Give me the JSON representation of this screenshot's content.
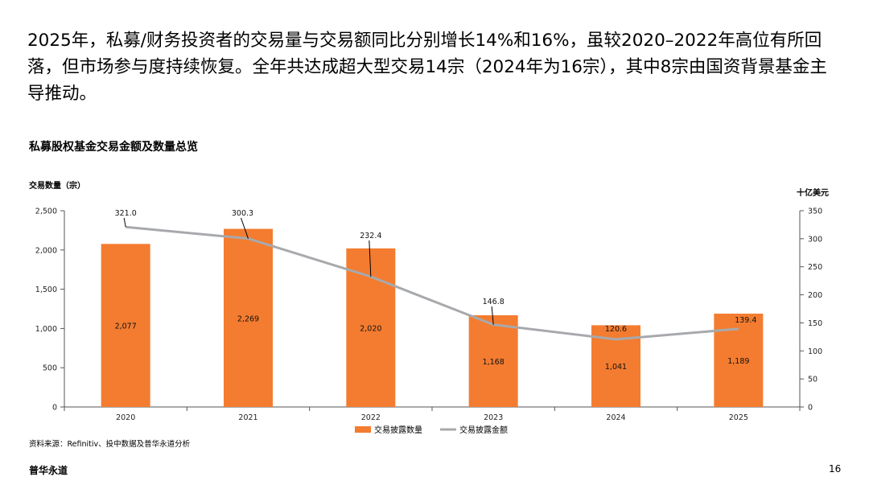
{
  "headline": "2025年，私募/财务投资者的交易量与交易额同比分别增长14%和16%，虽较2020–2022年高位有所回落，但市场参与度持续恢复。全年共达成超大型交易14宗（2024年为16宗），其中8宗由国资背景基金主导推动。",
  "colors": {
    "bar": "#F47C30",
    "line": "#A7A9AC",
    "axis": "#555555",
    "text": "#000000"
  },
  "chart_data": {
    "type": "bar",
    "title": "私募股权基金交易金额及数量总览",
    "left_axis_title": "交易数量（宗）",
    "right_axis_title": "十亿美元",
    "categories": [
      "2020",
      "2021",
      "2022",
      "2023",
      "2024",
      "2025"
    ],
    "series": [
      {
        "name": "交易披露数量",
        "type": "bar",
        "axis": "left",
        "values": [
          2077,
          2269,
          2020,
          1168,
          1041,
          1189
        ],
        "labels": [
          "2,077",
          "2,269",
          "2,020",
          "1,168",
          "1,041",
          "1,189"
        ]
      },
      {
        "name": "交易披露金额",
        "type": "line",
        "axis": "right",
        "values": [
          321.0,
          300.3,
          232.4,
          146.8,
          120.6,
          139.4
        ],
        "labels": [
          "321.0",
          "300.3",
          "232.4",
          "146.8",
          "120.6",
          "139.4"
        ]
      }
    ],
    "left_ylim": [
      0,
      2500
    ],
    "left_ticks": [
      0,
      500,
      1000,
      1500,
      2000,
      2500
    ],
    "left_tick_labels": [
      "0",
      "500",
      "1,000",
      "1,500",
      "2,000",
      "2,500"
    ],
    "right_ylim": [
      0,
      350
    ],
    "right_ticks": [
      0,
      50,
      100,
      150,
      200,
      250,
      300,
      350
    ],
    "right_tick_labels": [
      "0",
      "50",
      "100",
      "150",
      "200",
      "250",
      "300",
      "350"
    ],
    "legend_position": "bottom-center"
  },
  "source": "资料来源：Refinitiv、投中数据及普华永道分析",
  "brand": "普华永道",
  "page_number": "16"
}
